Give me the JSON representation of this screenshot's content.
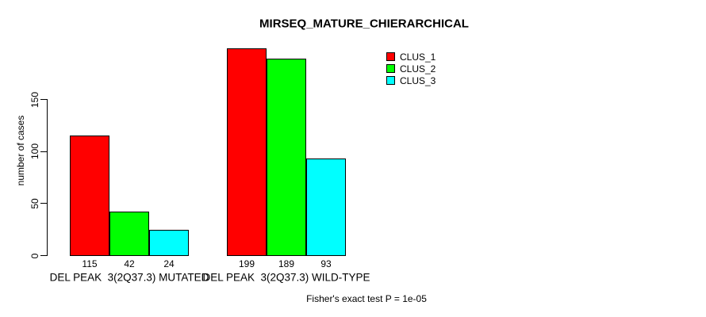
{
  "chart_data": {
    "type": "bar",
    "title": "MIRSEQ_MATURE_CHIERARCHICAL",
    "xlabel": "",
    "ylabel": "number of cases",
    "ylim": [
      0,
      150
    ],
    "yticks": [
      0,
      50,
      100,
      150
    ],
    "grid": false,
    "legend_position": "top-right",
    "categories": [
      "DEL PEAK  3(2Q37.3) MUTATED",
      "DEL PEAK  3(2Q37.3) WILD-TYPE"
    ],
    "series": [
      {
        "name": "CLUS_1",
        "color": "#ff0000",
        "values": [
          115,
          199
        ]
      },
      {
        "name": "CLUS_2",
        "color": "#00ff00",
        "values": [
          42,
          189
        ]
      },
      {
        "name": "CLUS_3",
        "color": "#00ffff",
        "values": [
          24,
          93
        ]
      }
    ],
    "bar_value_labels": [
      [
        115,
        42,
        24
      ],
      [
        199,
        189,
        93
      ]
    ],
    "annotation": "Fisher's exact test P = 1e-05"
  },
  "colors": {
    "background": "#ffffff",
    "axis": "#000000",
    "text": "#000000",
    "clus_1": "#ff0000",
    "clus_2": "#00ff00",
    "clus_3": "#00ffff"
  }
}
